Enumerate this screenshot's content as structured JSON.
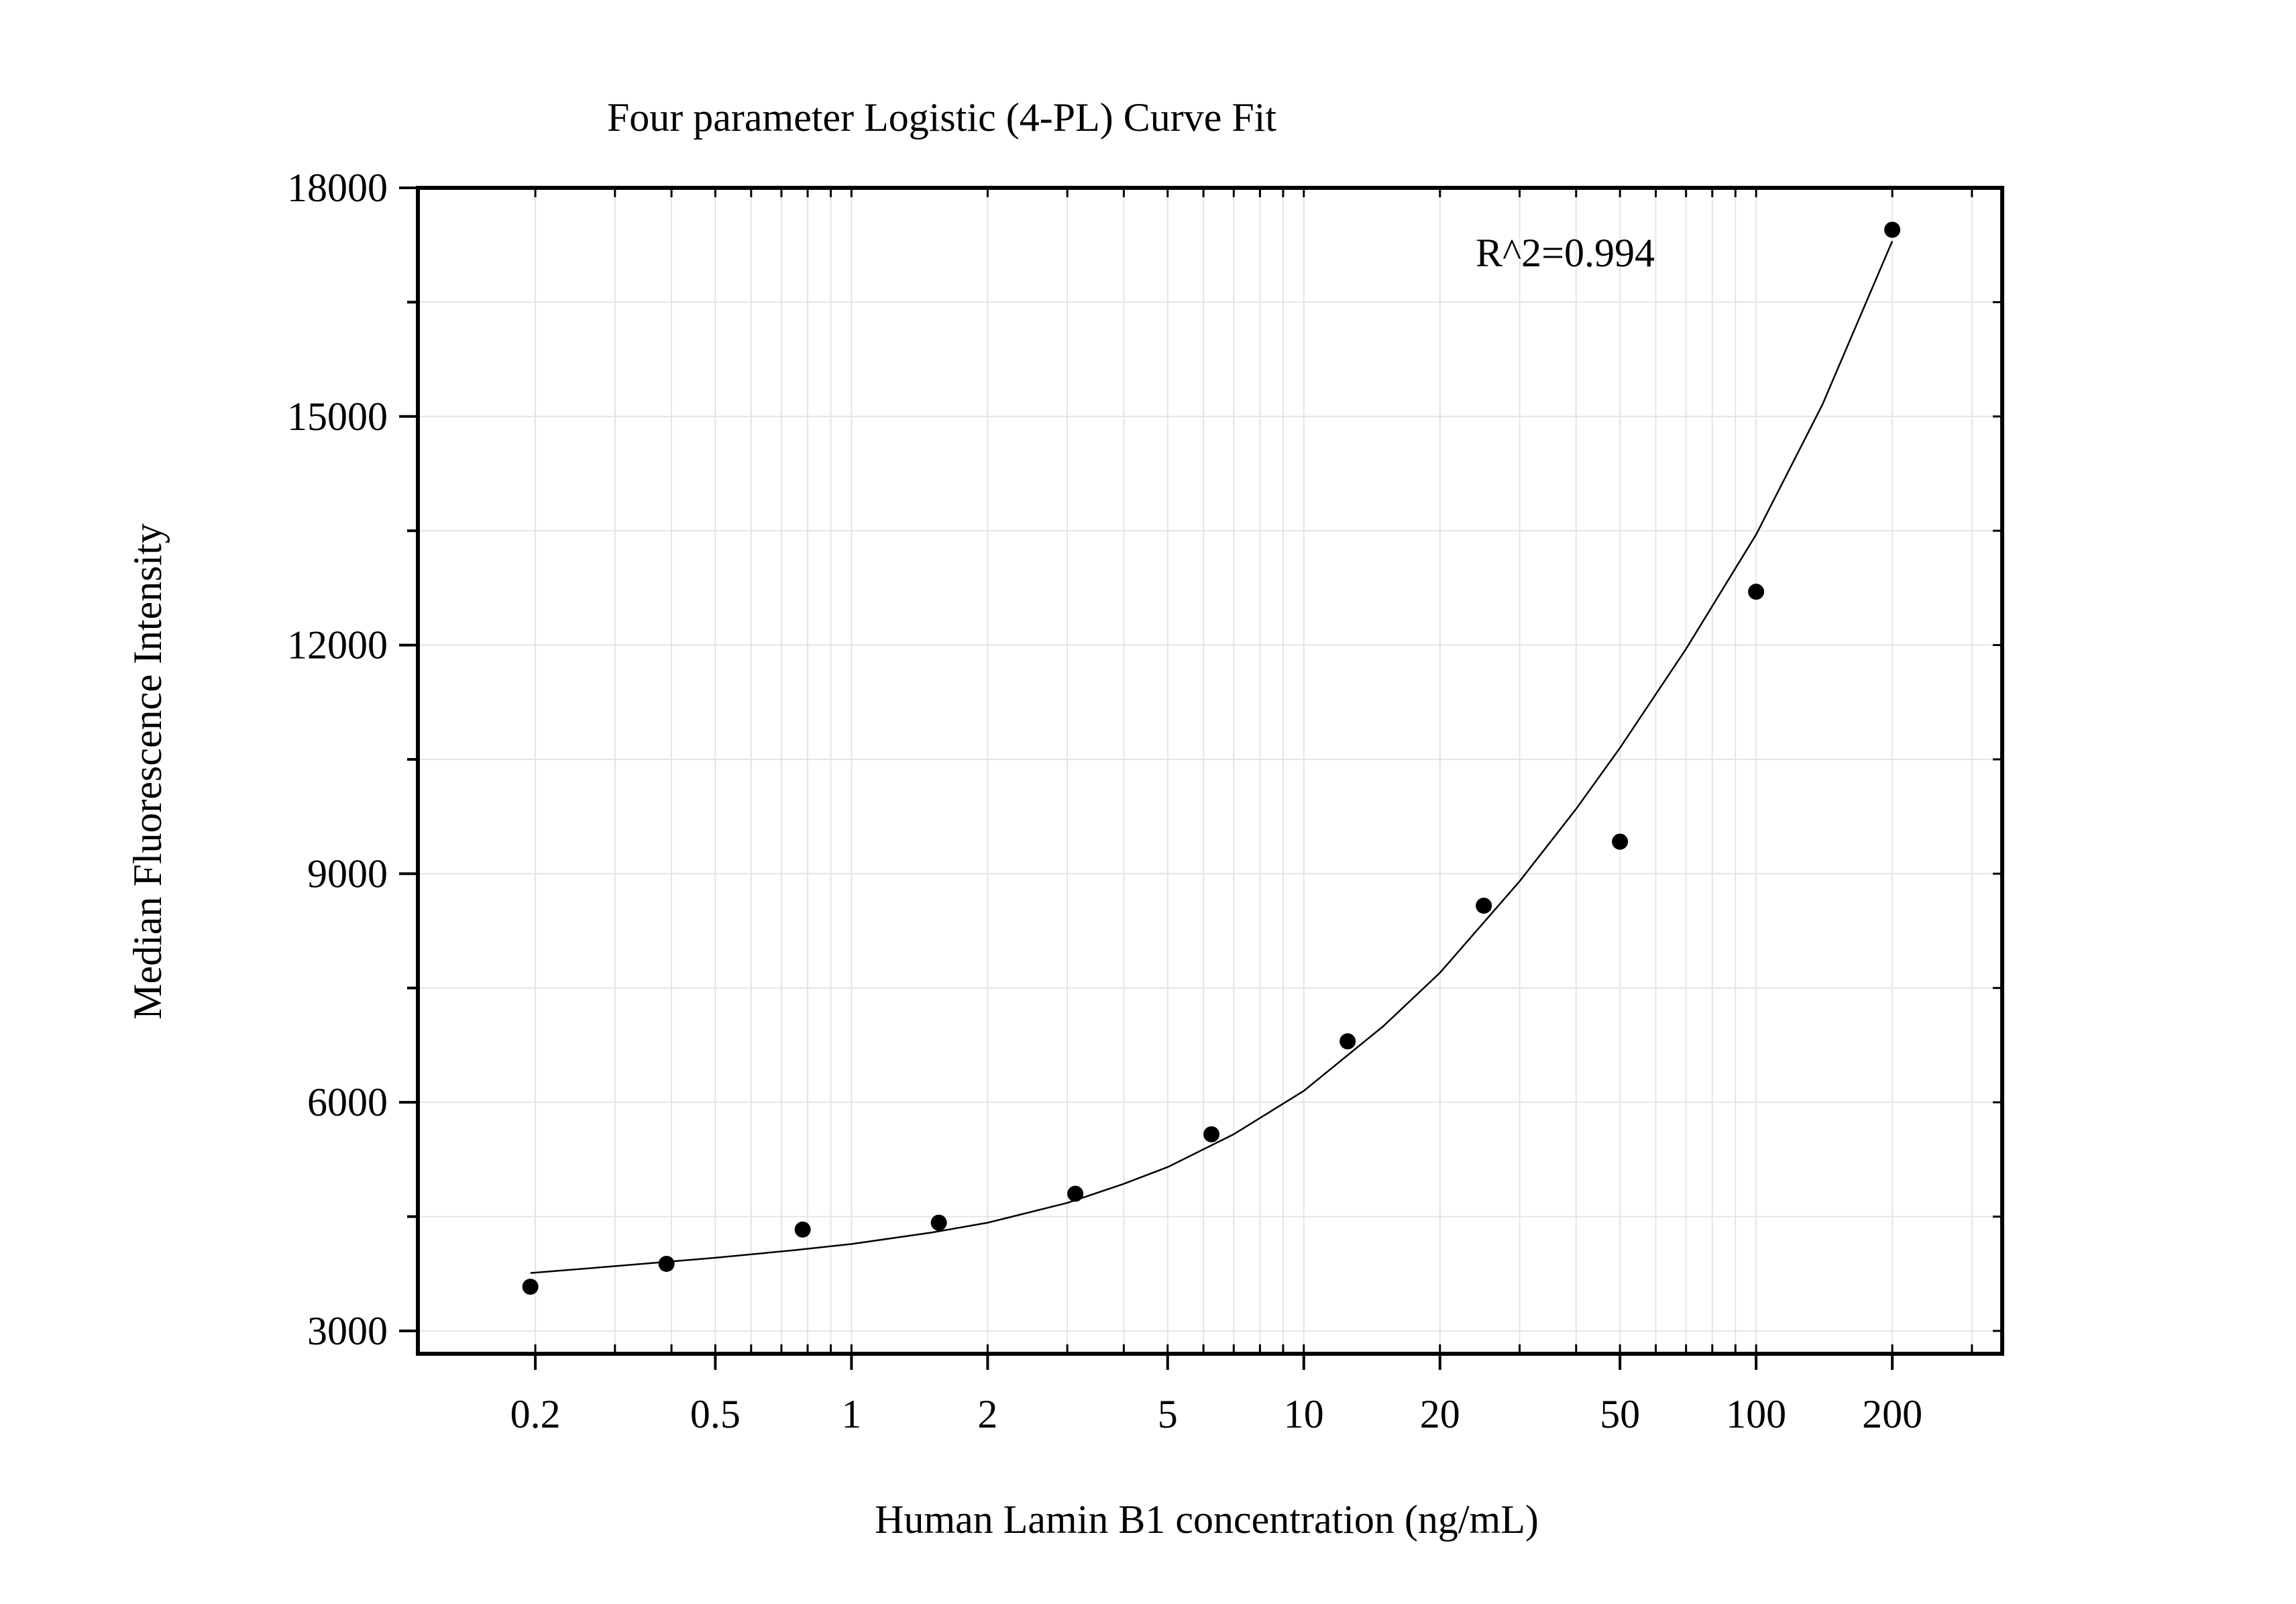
{
  "chart_data": {
    "type": "scatter",
    "title": "Four parameter Logistic (4-PL) Curve Fit",
    "xlabel": "Human Lamin B1 concentration (ng/mL)",
    "ylabel": "Median Fluorescence Intensity",
    "x_scale": "log10",
    "xlim": [
      0.11,
      350
    ],
    "ylim": [
      2700,
      18000
    ],
    "x_ticks": [
      0.2,
      0.5,
      1,
      2,
      5,
      10,
      20,
      50,
      100,
      200
    ],
    "x_tick_labels": [
      "0.2",
      "0.5",
      "1",
      "2",
      "5",
      "10",
      "20",
      "50",
      "100",
      "200"
    ],
    "y_ticks": [
      3000,
      6000,
      9000,
      12000,
      15000,
      18000
    ],
    "y_tick_labels": [
      "3000",
      "6000",
      "9000",
      "12000",
      "15000",
      "18000"
    ],
    "grid": true,
    "annotation": "R^2=0.994",
    "points": [
      {
        "x": 0.195,
        "y": 3580
      },
      {
        "x": 0.39,
        "y": 3880
      },
      {
        "x": 0.78,
        "y": 4330
      },
      {
        "x": 1.56,
        "y": 4420
      },
      {
        "x": 3.125,
        "y": 4800
      },
      {
        "x": 6.25,
        "y": 5580
      },
      {
        "x": 12.5,
        "y": 6800
      },
      {
        "x": 25,
        "y": 8580
      },
      {
        "x": 50,
        "y": 9420
      },
      {
        "x": 100,
        "y": 12700
      },
      {
        "x": 200,
        "y": 17450
      }
    ],
    "fit_curve": {
      "x": [
        0.195,
        0.3,
        0.5,
        0.75,
        1,
        1.5,
        2,
        3,
        4,
        5,
        7,
        10,
        15,
        20,
        30,
        40,
        50,
        70,
        100,
        140,
        200
      ],
      "y": [
        3760,
        3850,
        3960,
        4060,
        4140,
        4290,
        4420,
        4680,
        4930,
        5150,
        5580,
        6150,
        7000,
        7700,
        8900,
        9850,
        10650,
        11950,
        13450,
        15150,
        17300
      ]
    },
    "colors": {
      "points": "#000000",
      "curve": "#000000",
      "grid": "#e4e4e4",
      "axes": "#000000"
    }
  }
}
